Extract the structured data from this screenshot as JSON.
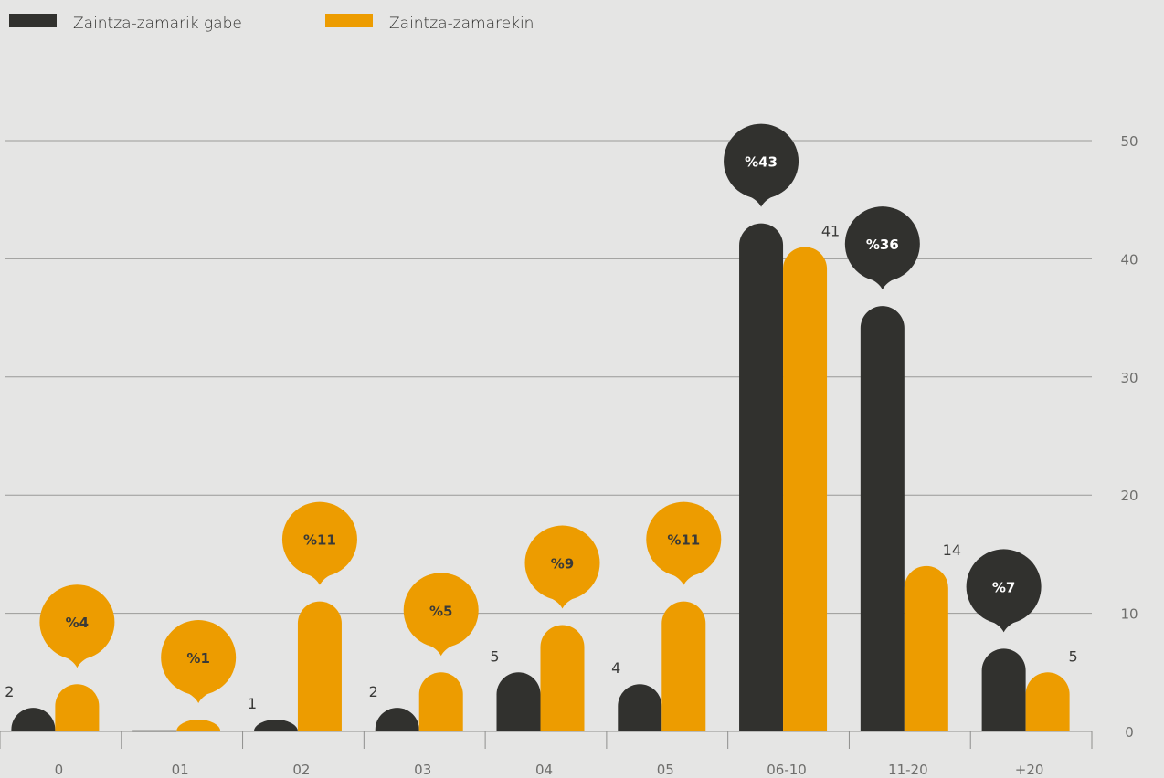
{
  "chart_data": {
    "type": "bar",
    "categories": [
      "0",
      "01",
      "02",
      "03",
      "04",
      "05",
      "06-10",
      "11-20",
      "+20"
    ],
    "series": [
      {
        "name": "Zaintza-zamarik gabe",
        "color": "#31312e",
        "values": [
          2,
          0,
          1,
          2,
          5,
          4,
          43,
          36,
          7
        ],
        "labels": [
          "2",
          "",
          "1",
          "2",
          "5",
          "4",
          "",
          "",
          ""
        ],
        "callouts": [
          "",
          "",
          "",
          "",
          "",
          "",
          "%43",
          "%36",
          "%7"
        ]
      },
      {
        "name": "Zaintza-zamarekin",
        "color": "#ed9c00",
        "values": [
          4,
          1,
          11,
          5,
          9,
          11,
          41,
          14,
          5
        ],
        "labels": [
          "",
          "",
          "",
          "",
          "",
          "",
          "41",
          "14",
          "5"
        ],
        "callouts": [
          "%4",
          "%1",
          "%11",
          "%5",
          "%9",
          "%11",
          "",
          "",
          ""
        ]
      }
    ],
    "yticks": [
      "0",
      "10",
      "20",
      "30",
      "40",
      "50"
    ],
    "ylim": [
      0,
      50
    ],
    "grid": true,
    "legend": "top-left"
  }
}
